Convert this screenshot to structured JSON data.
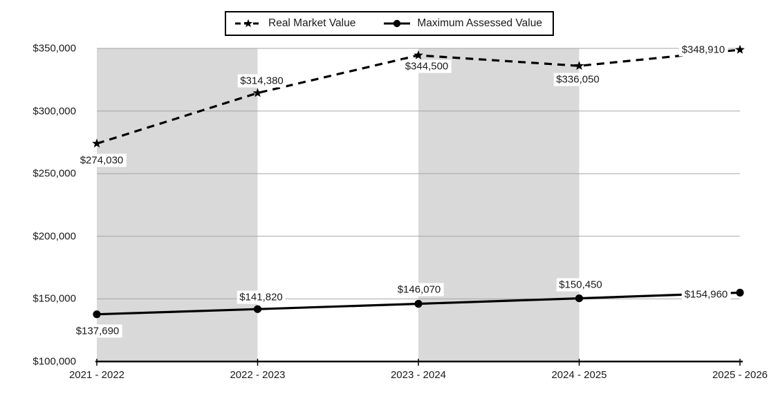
{
  "chart_data": {
    "type": "line",
    "title": "",
    "categories": [
      "2021 - 2022",
      "2022 - 2023",
      "2023 - 2024",
      "2024 - 2025",
      "2025 - 2026"
    ],
    "series": [
      {
        "name": "Real Market Value",
        "values": [
          274030,
          314380,
          344500,
          336050,
          348910
        ],
        "point_labels": [
          "$274,030",
          "$314,380",
          "$344,500",
          "$336,050",
          "$348,910"
        ],
        "label_offsets": [
          [
            7,
            24
          ],
          [
            6,
            -18
          ],
          [
            12,
            16
          ],
          [
            -2,
            20
          ],
          [
            -53,
            0
          ]
        ],
        "line_style": "dashed",
        "marker": "star"
      },
      {
        "name": "Maximum Assessed Value",
        "values": [
          137690,
          141820,
          146070,
          150450,
          154960
        ],
        "point_labels": [
          "$137,690",
          "$141,820",
          "$146,070",
          "$150,450",
          "$154,960"
        ],
        "label_offsets": [
          [
            1,
            24
          ],
          [
            5,
            -17
          ],
          [
            1,
            -21
          ],
          [
            2,
            -20
          ],
          [
            -49,
            3
          ]
        ],
        "line_style": "solid",
        "marker": "circle"
      }
    ],
    "ylim": [
      100000,
      350000
    ],
    "ytick_step": 50000,
    "ytick_labels": [
      "$100,000",
      "$150,000",
      "$200,000",
      "$250,000",
      "$300,000",
      "$350,000"
    ],
    "grid": true,
    "legend_position": "top-center",
    "shaded_columns": [
      0,
      2
    ],
    "colors": {
      "series": "#000000",
      "band": "#d9d9d9",
      "gridline": "#a6a6a6",
      "axis": "#000000",
      "background": "#ffffff",
      "label_background": "#ffffff",
      "text": "#1a1a1a"
    }
  }
}
